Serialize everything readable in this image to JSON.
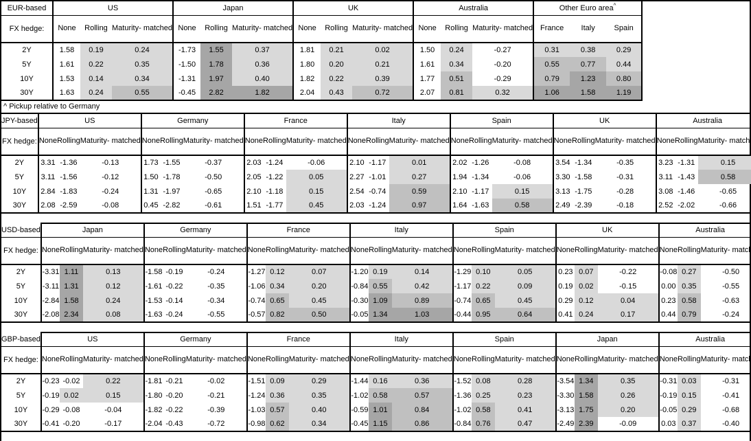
{
  "note": "^ Pickup relative to Germany",
  "fx_hedge_label": "FX hedge:",
  "tenors": [
    "2Y",
    "5Y",
    "10Y",
    "30Y"
  ],
  "hedge_columns": [
    "None",
    "Rolling",
    "Maturity-matched"
  ],
  "shading": {
    "rule": "cells in columns other than None are shaded by value",
    "thresholds": [
      0,
      0.5,
      1.0
    ],
    "negative": "#ffffff",
    "low": "#d9d9d9",
    "mid": "#c0c0c0",
    "high": "#a6a6a6"
  },
  "tables": [
    {
      "id": "eur",
      "base": "EUR-based",
      "groups": [
        {
          "name": "US",
          "columns": [
            "None",
            "Rolling",
            "Maturity-matched"
          ],
          "rows": [
            [
              "1.58",
              "0.19",
              "0.24"
            ],
            [
              "1.61",
              "0.22",
              "0.35"
            ],
            [
              "1.53",
              "0.14",
              "0.34"
            ],
            [
              "1.63",
              "0.24",
              "0.55"
            ]
          ]
        },
        {
          "name": "Japan",
          "columns": [
            "None",
            "Rolling",
            "Maturity-matched"
          ],
          "rows": [
            [
              "-1.73",
              "1.55",
              "0.37"
            ],
            [
              "-1.50",
              "1.78",
              "0.36"
            ],
            [
              "-1.31",
              "1.97",
              "0.40"
            ],
            [
              "-0.45",
              "2.82",
              "1.82"
            ]
          ]
        },
        {
          "name": "UK",
          "columns": [
            "None",
            "Rolling",
            "Maturity-matched"
          ],
          "rows": [
            [
              "1.81",
              "0.21",
              "0.02"
            ],
            [
              "1.80",
              "0.20",
              "0.21"
            ],
            [
              "1.82",
              "0.22",
              "0.39"
            ],
            [
              "2.04",
              "0.43",
              "0.72"
            ]
          ]
        },
        {
          "name": "Australia",
          "columns": [
            "None",
            "Rolling",
            "Maturity-matched"
          ],
          "rows": [
            [
              "1.50",
              "0.24",
              "-0.27"
            ],
            [
              "1.61",
              "0.34",
              "-0.20"
            ],
            [
              "1.77",
              "0.51",
              "-0.29"
            ],
            [
              "2.07",
              "0.81",
              "0.32"
            ]
          ]
        },
        {
          "name": "Other Euro area",
          "sup": "^",
          "columns": [
            "France",
            "Italy",
            "Spain"
          ],
          "rows": [
            [
              "0.31",
              "0.38",
              "0.29"
            ],
            [
              "0.55",
              "0.77",
              "0.44"
            ],
            [
              "0.79",
              "1.23",
              "0.80"
            ],
            [
              "1.06",
              "1.58",
              "1.19"
            ]
          ]
        }
      ]
    },
    {
      "id": "jpy",
      "base": "JPY-based",
      "groups": [
        {
          "name": "US",
          "columns": [
            "None",
            "Rolling",
            "Maturity-matched"
          ],
          "rows": [
            [
              "3.31",
              "-1.36",
              "-0.13"
            ],
            [
              "3.11",
              "-1.56",
              "-0.12"
            ],
            [
              "2.84",
              "-1.83",
              "-0.24"
            ],
            [
              "2.08",
              "-2.59",
              "-0.08"
            ]
          ]
        },
        {
          "name": "Germany",
          "columns": [
            "None",
            "Rolling",
            "Maturity-matched"
          ],
          "rows": [
            [
              "1.73",
              "-1.55",
              "-0.37"
            ],
            [
              "1.50",
              "-1.78",
              "-0.50"
            ],
            [
              "1.31",
              "-1.97",
              "-0.65"
            ],
            [
              "0.45",
              "-2.82",
              "-0.61"
            ]
          ]
        },
        {
          "name": "France",
          "columns": [
            "None",
            "Rolling",
            "Maturity-matched"
          ],
          "rows": [
            [
              "2.03",
              "-1.24",
              "-0.06"
            ],
            [
              "2.05",
              "-1.22",
              "0.05"
            ],
            [
              "2.10",
              "-1.18",
              "0.15"
            ],
            [
              "1.51",
              "-1.77",
              "0.45"
            ]
          ]
        },
        {
          "name": "Italy",
          "columns": [
            "None",
            "Rolling",
            "Maturity-matched"
          ],
          "rows": [
            [
              "2.10",
              "-1.17",
              "0.01"
            ],
            [
              "2.27",
              "-1.01",
              "0.27"
            ],
            [
              "2.54",
              "-0.74",
              "0.59"
            ],
            [
              "2.03",
              "-1.24",
              "0.97"
            ]
          ]
        },
        {
          "name": "Spain",
          "columns": [
            "None",
            "Rolling",
            "Maturity-matched"
          ],
          "rows": [
            [
              "2.02",
              "-1.26",
              "-0.08"
            ],
            [
              "1.94",
              "-1.34",
              "-0.06"
            ],
            [
              "2.10",
              "-1.17",
              "0.15"
            ],
            [
              "1.64",
              "-1.63",
              "0.58"
            ]
          ]
        },
        {
          "name": "UK",
          "columns": [
            "None",
            "Rolling",
            "Maturity-matched"
          ],
          "rows": [
            [
              "3.54",
              "-1.34",
              "-0.35"
            ],
            [
              "3.30",
              "-1.58",
              "-0.31"
            ],
            [
              "3.13",
              "-1.75",
              "-0.28"
            ],
            [
              "2.49",
              "-2.39",
              "-0.18"
            ]
          ]
        },
        {
          "name": "Australia",
          "columns": [
            "None",
            "Rolling",
            "Maturity-matched"
          ],
          "rows": [
            [
              "3.23",
              "-1.31",
              "0.15"
            ],
            [
              "3.11",
              "-1.43",
              "0.58"
            ],
            [
              "3.08",
              "-1.46",
              "-0.65"
            ],
            [
              "2.52",
              "-2.02",
              "-0.66"
            ]
          ]
        }
      ]
    },
    {
      "id": "usd",
      "base": "USD-based",
      "groups": [
        {
          "name": "Japan",
          "columns": [
            "None",
            "Rolling",
            "Maturity-matched"
          ],
          "rows": [
            [
              "-3.31",
              "1.11",
              "0.13"
            ],
            [
              "-3.11",
              "1.31",
              "0.12"
            ],
            [
              "-2.84",
              "1.58",
              "0.24"
            ],
            [
              "-2.08",
              "2.34",
              "0.08"
            ]
          ]
        },
        {
          "name": "Germany",
          "columns": [
            "None",
            "Rolling",
            "Maturity-matched"
          ],
          "rows": [
            [
              "-1.58",
              "-0.19",
              "-0.24"
            ],
            [
              "-1.61",
              "-0.22",
              "-0.35"
            ],
            [
              "-1.53",
              "-0.14",
              "-0.34"
            ],
            [
              "-1.63",
              "-0.24",
              "-0.55"
            ]
          ]
        },
        {
          "name": "France",
          "columns": [
            "None",
            "Rolling",
            "Maturity-matched"
          ],
          "rows": [
            [
              "-1.27",
              "0.12",
              "0.07"
            ],
            [
              "-1.06",
              "0.34",
              "0.20"
            ],
            [
              "-0.74",
              "0.65",
              "0.45"
            ],
            [
              "-0.57",
              "0.82",
              "0.50"
            ]
          ]
        },
        {
          "name": "Italy",
          "columns": [
            "None",
            "Rolling",
            "Maturity-matched"
          ],
          "rows": [
            [
              "-1.20",
              "0.19",
              "0.14"
            ],
            [
              "-0.84",
              "0.55",
              "0.42"
            ],
            [
              "-0.30",
              "1.09",
              "0.89"
            ],
            [
              "-0.05",
              "1.34",
              "1.03"
            ]
          ]
        },
        {
          "name": "Spain",
          "columns": [
            "None",
            "Rolling",
            "Maturity-matched"
          ],
          "rows": [
            [
              "-1.29",
              "0.10",
              "0.05"
            ],
            [
              "-1.17",
              "0.22",
              "0.09"
            ],
            [
              "-0.74",
              "0.65",
              "0.45"
            ],
            [
              "-0.44",
              "0.95",
              "0.64"
            ]
          ]
        },
        {
          "name": "UK",
          "columns": [
            "None",
            "Rolling",
            "Maturity-matched"
          ],
          "rows": [
            [
              "0.23",
              "0.07",
              "-0.22"
            ],
            [
              "0.19",
              "0.02",
              "-0.15"
            ],
            [
              "0.29",
              "0.12",
              "0.04"
            ],
            [
              "0.41",
              "0.24",
              "0.17"
            ]
          ]
        },
        {
          "name": "Australia",
          "columns": [
            "None",
            "Rolling",
            "Maturity-matched"
          ],
          "rows": [
            [
              "-0.08",
              "0.27",
              "-0.50"
            ],
            [
              "0.00",
              "0.35",
              "-0.55"
            ],
            [
              "0.23",
              "0.58",
              "-0.63"
            ],
            [
              "0.44",
              "0.79",
              "-0.24"
            ]
          ]
        }
      ]
    },
    {
      "id": "gbp",
      "base": "GBP-based",
      "groups": [
        {
          "name": "US",
          "columns": [
            "None",
            "Rolling",
            "Maturity-matched"
          ],
          "rows": [
            [
              "-0.23",
              "-0.02",
              "0.22"
            ],
            [
              "-0.19",
              "0.02",
              "0.15"
            ],
            [
              "-0.29",
              "-0.08",
              "-0.04"
            ],
            [
              "-0.41",
              "-0.20",
              "-0.17"
            ]
          ]
        },
        {
          "name": "Germany",
          "columns": [
            "None",
            "Rolling",
            "Maturity-matched"
          ],
          "rows": [
            [
              "-1.81",
              "-0.21",
              "-0.02"
            ],
            [
              "-1.80",
              "-0.20",
              "-0.21"
            ],
            [
              "-1.82",
              "-0.22",
              "-0.39"
            ],
            [
              "-2.04",
              "-0.43",
              "-0.72"
            ]
          ]
        },
        {
          "name": "France",
          "columns": [
            "None",
            "Rolling",
            "Maturity-matched"
          ],
          "rows": [
            [
              "-1.51",
              "0.09",
              "0.29"
            ],
            [
              "-1.24",
              "0.36",
              "0.35"
            ],
            [
              "-1.03",
              "0.57",
              "0.40"
            ],
            [
              "-0.98",
              "0.62",
              "0.34"
            ]
          ]
        },
        {
          "name": "Italy",
          "columns": [
            "None",
            "Rolling",
            "Maturity-matched"
          ],
          "rows": [
            [
              "-1.44",
              "0.16",
              "0.36"
            ],
            [
              "-1.02",
              "0.58",
              "0.57"
            ],
            [
              "-0.59",
              "1.01",
              "0.84"
            ],
            [
              "-0.45",
              "1.15",
              "0.86"
            ]
          ]
        },
        {
          "name": "Spain",
          "columns": [
            "None",
            "Rolling",
            "Maturity-matched"
          ],
          "rows": [
            [
              "-1.52",
              "0.08",
              "0.28"
            ],
            [
              "-1.36",
              "0.25",
              "0.23"
            ],
            [
              "-1.02",
              "0.58",
              "0.41"
            ],
            [
              "-0.84",
              "0.76",
              "0.47"
            ]
          ]
        },
        {
          "name": "Japan",
          "columns": [
            "None",
            "Rolling",
            "Maturity-matched"
          ],
          "rows": [
            [
              "-3.54",
              "1.34",
              "0.35"
            ],
            [
              "-3.30",
              "1.58",
              "0.26"
            ],
            [
              "-3.13",
              "1.75",
              "0.20"
            ],
            [
              "-2.49",
              "2.39",
              "-0.09"
            ]
          ]
        },
        {
          "name": "Australia",
          "columns": [
            "None",
            "Rolling",
            "Maturity-matched"
          ],
          "rows": [
            [
              "-0.31",
              "0.03",
              "-0.31"
            ],
            [
              "-0.19",
              "0.15",
              "-0.41"
            ],
            [
              "-0.05",
              "0.29",
              "-0.68"
            ],
            [
              "0.03",
              "0.37",
              "-0.40"
            ]
          ]
        }
      ]
    }
  ]
}
